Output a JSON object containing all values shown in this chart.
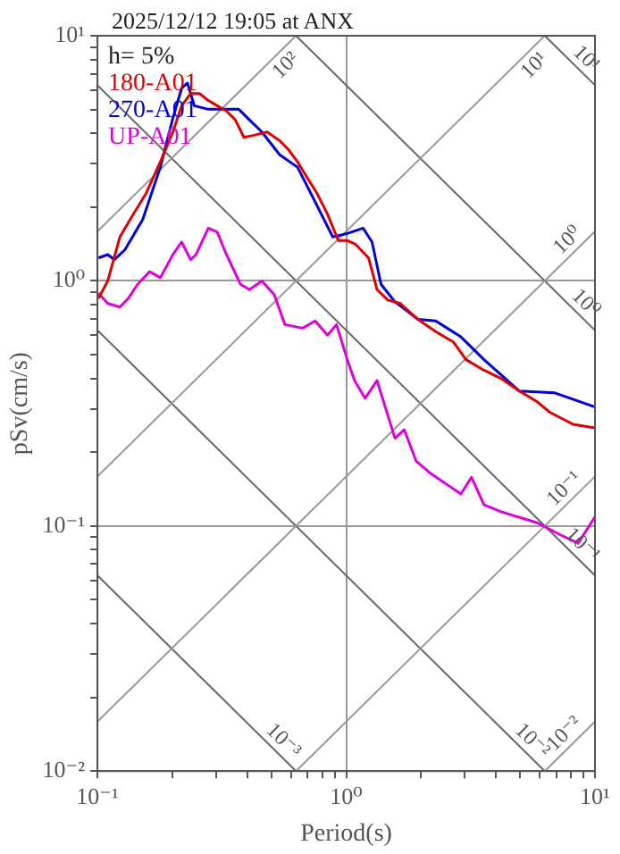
{
  "chart_data": {
    "type": "line",
    "title": "2025/12/12 19:05 at ANX",
    "xlabel": "Period(s)",
    "ylabel": "pSv(cm/s)",
    "legend_title": "h= 5%",
    "legend": "top left",
    "log": "xy",
    "grid": true,
    "xlim": [
      0.1,
      10
    ],
    "ylim": [
      0.01,
      10
    ],
    "xticks": [
      {
        "value": 0.1,
        "label": "10⁻¹"
      },
      {
        "value": 0.2,
        "label": null
      },
      {
        "value": 0.3,
        "label": null
      },
      {
        "value": 0.4,
        "label": null
      },
      {
        "value": 0.5,
        "label": null
      },
      {
        "value": 0.6,
        "label": null
      },
      {
        "value": 0.7,
        "label": null
      },
      {
        "value": 0.8,
        "label": null
      },
      {
        "value": 0.9,
        "label": null
      },
      {
        "value": 1,
        "label": "10⁰"
      },
      {
        "value": 2,
        "label": null
      },
      {
        "value": 3,
        "label": null
      },
      {
        "value": 4,
        "label": null
      },
      {
        "value": 5,
        "label": null
      },
      {
        "value": 6,
        "label": null
      },
      {
        "value": 7,
        "label": null
      },
      {
        "value": 8,
        "label": null
      },
      {
        "value": 9,
        "label": null
      },
      {
        "value": 10,
        "label": "10¹"
      }
    ],
    "yticks": [
      {
        "value": 0.01,
        "label": "10⁻²"
      },
      {
        "value": 0.02,
        "label": null
      },
      {
        "value": 0.03,
        "label": null
      },
      {
        "value": 0.04,
        "label": null
      },
      {
        "value": 0.05,
        "label": null
      },
      {
        "value": 0.06,
        "label": null
      },
      {
        "value": 0.07,
        "label": null
      },
      {
        "value": 0.08,
        "label": null
      },
      {
        "value": 0.09,
        "label": null
      },
      {
        "value": 0.1,
        "label": "10⁻¹"
      },
      {
        "value": 0.2,
        "label": null
      },
      {
        "value": 0.3,
        "label": null
      },
      {
        "value": 0.4,
        "label": null
      },
      {
        "value": 0.5,
        "label": null
      },
      {
        "value": 0.6,
        "label": null
      },
      {
        "value": 0.7,
        "label": null
      },
      {
        "value": 0.8,
        "label": null
      },
      {
        "value": 0.9,
        "label": null
      },
      {
        "value": 1,
        "label": "10⁰"
      },
      {
        "value": 2,
        "label": null
      },
      {
        "value": 3,
        "label": null
      },
      {
        "value": 4,
        "label": null
      },
      {
        "value": 5,
        "label": null
      },
      {
        "value": 6,
        "label": null
      },
      {
        "value": 7,
        "label": null
      },
      {
        "value": 8,
        "label": null
      },
      {
        "value": 9,
        "label": null
      },
      {
        "value": 10,
        "label": "10¹"
      }
    ],
    "series": [
      {
        "color": "#999999",
        "x": [
          6.283,
          10
        ],
        "values": [
          0.01,
          0.01592
        ]
      },
      {
        "color": "#999999",
        "x": [
          0.6283,
          10
        ],
        "values": [
          0.01,
          0.1592
        ]
      },
      {
        "color": "#999999",
        "x": [
          0.1,
          10
        ],
        "values": [
          0.01592,
          1.592
        ]
      },
      {
        "color": "#999999",
        "x": [
          0.1,
          6.283
        ],
        "values": [
          0.1592,
          10
        ]
      },
      {
        "color": "#999999",
        "x": [
          0.1,
          0.6283
        ],
        "values": [
          1.592,
          10
        ]
      },
      {
        "color": "#666666",
        "x": [
          0.1,
          0.6283
        ],
        "values": [
          0.06283,
          0.01
        ]
      },
      {
        "color": "#666666",
        "x": [
          0.1,
          6.283
        ],
        "values": [
          0.6283,
          0.01
        ]
      },
      {
        "color": "#666666",
        "x": [
          0.1,
          10
        ],
        "values": [
          6.283,
          0.06283
        ]
      },
      {
        "color": "#666666",
        "x": [
          0.6283,
          10
        ],
        "values": [
          10,
          0.6283
        ]
      },
      {
        "color": "#666666",
        "x": [
          6.283,
          10
        ],
        "values": [
          10,
          6.283
        ]
      },
      {
        "name": "180-A01",
        "color": "#e00000",
        "x": [
          0.101,
          0.11,
          0.123,
          0.138,
          0.157,
          0.179,
          0.201,
          0.218,
          0.237,
          0.257,
          0.279,
          0.303,
          0.33,
          0.358,
          0.388,
          0.422,
          0.481,
          0.54,
          0.586,
          0.637,
          0.69,
          0.762,
          0.841,
          0.929,
          1.01,
          1.09,
          1.23,
          1.33,
          1.47,
          1.65,
          1.94,
          2.29,
          2.7,
          3.03,
          3.58,
          4.22,
          4.97,
          5.86,
          6.58,
          8.15,
          10
        ],
        "values": [
          0.848,
          1.0,
          1.51,
          1.84,
          2.28,
          3.06,
          4.05,
          5.18,
          5.81,
          5.81,
          5.44,
          5.18,
          4.93,
          4.54,
          3.85,
          3.92,
          4.05,
          3.73,
          3.43,
          3.06,
          2.68,
          2.28,
          1.87,
          1.46,
          1.46,
          1.41,
          1.24,
          0.921,
          0.835,
          0.808,
          0.697,
          0.621,
          0.562,
          0.477,
          0.432,
          0.398,
          0.355,
          0.321,
          0.291,
          0.26,
          0.251
        ]
      },
      {
        "name": "270-A01",
        "color": "#0000dd",
        "x": [
          0.101,
          0.11,
          0.117,
          0.129,
          0.152,
          0.179,
          0.201,
          0.218,
          0.23,
          0.245,
          0.279,
          0.33,
          0.37,
          0.408,
          0.458,
          0.54,
          0.637,
          0.75,
          0.883,
          1.01,
          1.17,
          1.27,
          1.38,
          1.57,
          1.94,
          2.29,
          2.89,
          3.58,
          4.97,
          6.9,
          10
        ],
        "values": [
          1.24,
          1.28,
          1.22,
          1.34,
          1.78,
          2.91,
          4.62,
          6.11,
          6.41,
          5.18,
          5.01,
          5.01,
          5.01,
          4.54,
          4.05,
          3.27,
          2.91,
          2.1,
          1.51,
          1.56,
          1.64,
          1.44,
          0.968,
          0.821,
          0.697,
          0.686,
          0.591,
          0.477,
          0.355,
          0.349,
          0.306
        ]
      },
      {
        "name": "UP-A01",
        "color": "#dd00dd",
        "x": [
          0.101,
          0.11,
          0.123,
          0.133,
          0.145,
          0.162,
          0.179,
          0.201,
          0.218,
          0.237,
          0.249,
          0.279,
          0.303,
          0.33,
          0.376,
          0.408,
          0.458,
          0.514,
          0.567,
          0.668,
          0.75,
          0.841,
          0.914,
          1.01,
          1.08,
          1.19,
          1.33,
          1.57,
          1.71,
          1.91,
          2.18,
          2.89,
          3.19,
          3.58,
          4.22,
          5.86,
          7.26,
          8.56,
          10
        ],
        "values": [
          0.891,
          0.808,
          0.782,
          0.848,
          0.968,
          1.09,
          1.03,
          1.28,
          1.44,
          1.22,
          1.28,
          1.64,
          1.58,
          1.28,
          0.968,
          0.921,
          1.0,
          0.877,
          0.663,
          0.641,
          0.686,
          0.6,
          0.663,
          0.477,
          0.392,
          0.332,
          0.392,
          0.228,
          0.247,
          0.184,
          0.164,
          0.135,
          0.158,
          0.122,
          0.114,
          0.103,
          0.092,
          0.085,
          0.109
        ]
      }
    ],
    "annotations": [
      {
        "text": "10²",
        "x": 0.6283,
        "y": 10
      },
      {
        "text": "10¹",
        "x": 6.283,
        "y": 10
      },
      {
        "text": "10⁰",
        "x": 10,
        "y": 1.592
      },
      {
        "text": "10⁻¹",
        "x": 10,
        "y": 0.1592
      },
      {
        "text": "10⁻²",
        "x": 10,
        "y": 0.01592
      },
      {
        "text": "10¹",
        "x": 10,
        "y": 6.283
      },
      {
        "text": "10⁰",
        "x": 10,
        "y": 0.6283
      },
      {
        "text": "10⁻¹",
        "x": 10,
        "y": 0.06283
      },
      {
        "text": "10⁻²",
        "x": 6.283,
        "y": 0.01
      },
      {
        "text": "10⁻³",
        "x": 0.6283,
        "y": 0.01
      }
    ]
  }
}
